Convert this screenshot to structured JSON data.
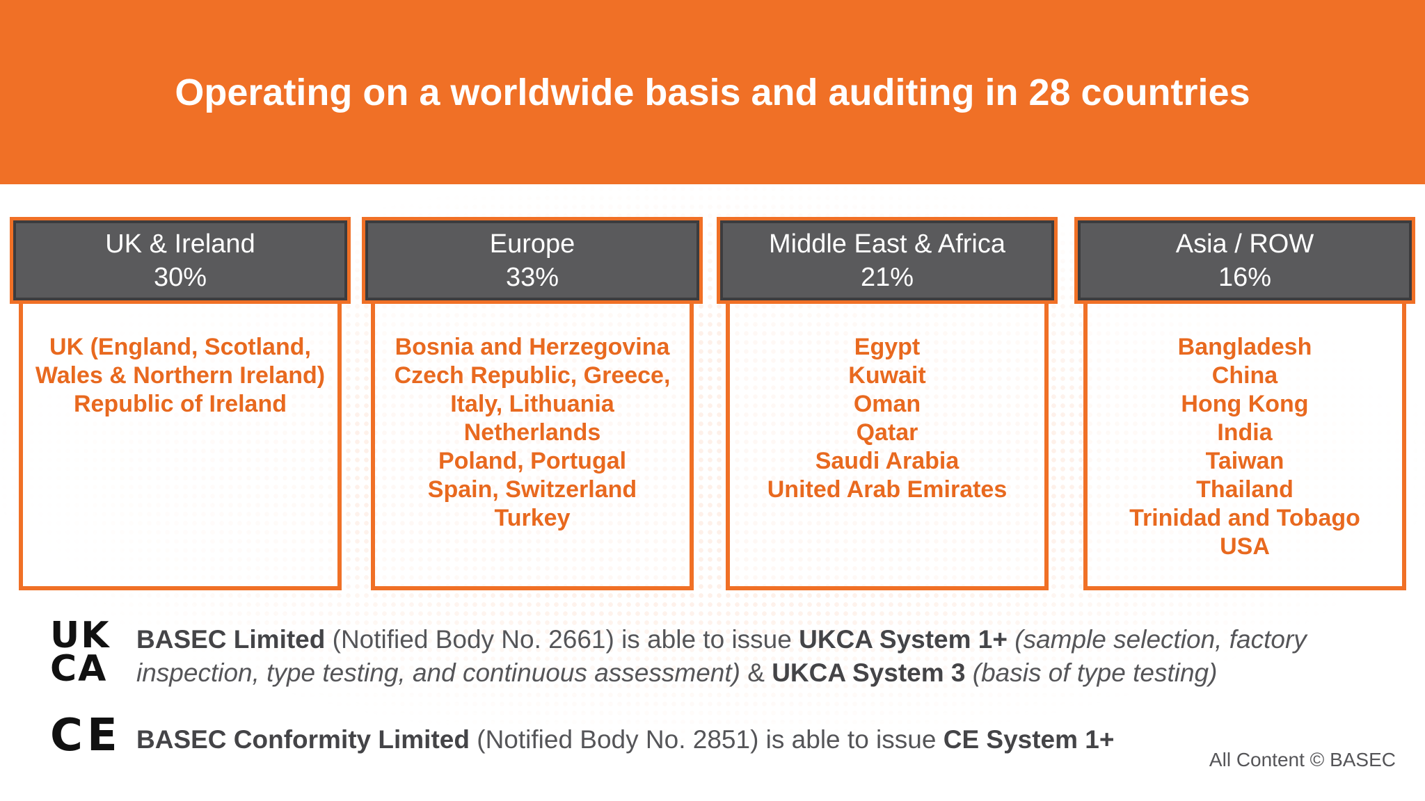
{
  "header": {
    "title": "Operating on a worldwide basis and auditing in 28 countries"
  },
  "regions": [
    {
      "name": "UK & Ireland",
      "percent": "30%",
      "countries": [
        "UK (England, Scotland,",
        "Wales & Northern Ireland)",
        "Republic of Ireland"
      ]
    },
    {
      "name": "Europe",
      "percent": "33%",
      "countries": [
        "Bosnia and Herzegovina",
        "Czech Republic, Greece,",
        "Italy, Lithuania",
        "Netherlands",
        "Poland, Portugal",
        "Spain, Switzerland",
        "Turkey"
      ]
    },
    {
      "name": "Middle East & Africa",
      "percent": "21%",
      "countries": [
        "Egypt",
        "Kuwait",
        "Oman",
        "Qatar",
        "Saudi Arabia",
        "United Arab Emirates"
      ]
    },
    {
      "name": "Asia / ROW",
      "percent": "16%",
      "countries": [
        "Bangladesh",
        "China",
        "Hong Kong",
        "India",
        "Taiwan",
        "Thailand",
        "Trinidad and Tobago",
        "USA"
      ]
    }
  ],
  "certifications": {
    "ukca": {
      "mark_top": "UK",
      "mark_bottom": "CA",
      "entity": "BASEC Limited",
      "nb": " (Notified Body No. 2661) is able to issue ",
      "system1": "UKCA System 1+",
      "system1_detail": " (sample selection,  factory inspection, type testing, and continuous assessment)",
      "amp": " & ",
      "system3": "UKCA System 3",
      "system3_detail": " (basis of type testing)"
    },
    "ce": {
      "mark": "CE",
      "entity": "BASEC Conformity Limited",
      "nb": " (Notified Body No. 2851) is able to issue ",
      "system": "CE System 1+"
    }
  },
  "footer": {
    "copyright": "All Content © BASEC"
  },
  "colors": {
    "accent": "#f07026",
    "header_box": "#5a5a5c",
    "text": "#555558"
  }
}
